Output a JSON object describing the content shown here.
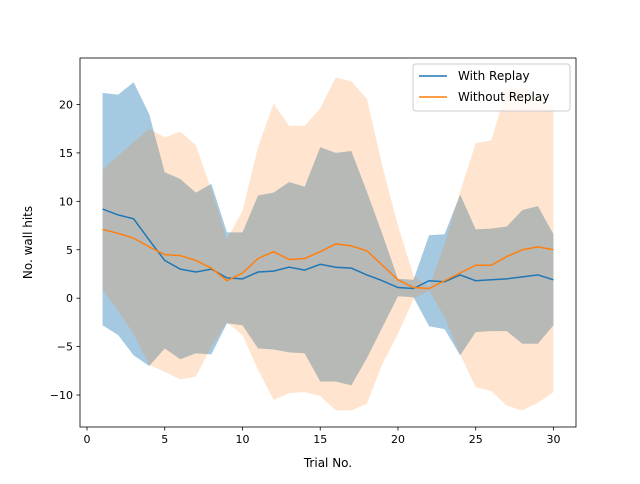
{
  "chart_data": {
    "type": "line",
    "title": "",
    "xlabel": "Trial No.",
    "ylabel": "No. wall hits",
    "xlim": [
      -0.45,
      31.45
    ],
    "ylim": [
      -13.3,
      24.8
    ],
    "x_ticks": [
      0,
      5,
      10,
      15,
      20,
      25,
      30
    ],
    "y_ticks": [
      -10,
      -5,
      0,
      5,
      10,
      15,
      20
    ],
    "grid": false,
    "legend_position": "top-right",
    "x": [
      1,
      2,
      3,
      4,
      5,
      6,
      7,
      8,
      9,
      10,
      11,
      12,
      13,
      14,
      15,
      16,
      17,
      18,
      19,
      20,
      21,
      22,
      23,
      24,
      25,
      26,
      27,
      28,
      29,
      30
    ],
    "series": [
      {
        "name": "With Replay",
        "color": "#1f77b4",
        "band_color": "#1f77b4",
        "values": [
          9.2,
          8.6,
          8.2,
          6.0,
          3.9,
          3.0,
          2.7,
          3.0,
          2.1,
          2.0,
          2.7,
          2.8,
          3.2,
          2.9,
          3.5,
          3.2,
          3.1,
          2.4,
          1.8,
          1.1,
          1.0,
          1.8,
          1.7,
          2.4,
          1.8,
          1.9,
          2.0,
          2.2,
          2.4,
          1.9
        ],
        "upper": [
          21.2,
          21.0,
          22.3,
          19.0,
          13.0,
          12.3,
          10.9,
          11.8,
          6.8,
          6.8,
          10.6,
          10.9,
          12.0,
          11.5,
          15.6,
          15.0,
          15.2,
          11.0,
          6.6,
          2.0,
          1.9,
          6.5,
          6.6,
          10.7,
          7.1,
          7.2,
          7.4,
          9.1,
          9.5,
          6.6
        ],
        "lower": [
          -2.8,
          -3.8,
          -5.9,
          -7.0,
          -5.2,
          -6.3,
          -5.7,
          -5.8,
          -2.6,
          -2.8,
          -5.2,
          -5.3,
          -5.6,
          -5.7,
          -8.6,
          -8.6,
          -9.0,
          -6.2,
          -3.0,
          0.2,
          0.1,
          -2.9,
          -3.2,
          -5.9,
          -3.5,
          -3.4,
          -3.4,
          -4.7,
          -4.7,
          -2.8
        ]
      },
      {
        "name": "Without Replay",
        "color": "#ff7f0e",
        "band_color": "#ff7f0e",
        "values": [
          7.1,
          6.7,
          6.2,
          5.3,
          4.5,
          4.4,
          3.9,
          3.1,
          1.8,
          2.6,
          4.1,
          4.8,
          4.0,
          4.1,
          4.8,
          5.6,
          5.4,
          4.9,
          3.4,
          1.9,
          1.1,
          1.0,
          1.8,
          2.6,
          3.4,
          3.4,
          4.3,
          5.0,
          5.3,
          5.0
        ],
        "upper": [
          13.3,
          14.7,
          16.1,
          17.5,
          16.6,
          17.2,
          15.8,
          11.2,
          6.1,
          9.0,
          15.6,
          20.1,
          17.8,
          17.8,
          19.6,
          22.8,
          22.4,
          20.6,
          13.6,
          7.5,
          2.3,
          1.2,
          5.6,
          11.0,
          16.0,
          16.3,
          21.6,
          21.7,
          20.8,
          19.7
        ],
        "lower": [
          0.9,
          -1.3,
          -3.7,
          -6.9,
          -7.6,
          -8.4,
          -8.1,
          -5.0,
          -2.5,
          -3.8,
          -7.4,
          -10.5,
          -9.8,
          -9.7,
          -10.1,
          -11.6,
          -11.6,
          -10.9,
          -6.8,
          -3.7,
          -0.1,
          0.8,
          -2.0,
          -5.8,
          -9.2,
          -9.6,
          -11.1,
          -11.6,
          -10.8,
          -9.7
        ]
      }
    ]
  }
}
